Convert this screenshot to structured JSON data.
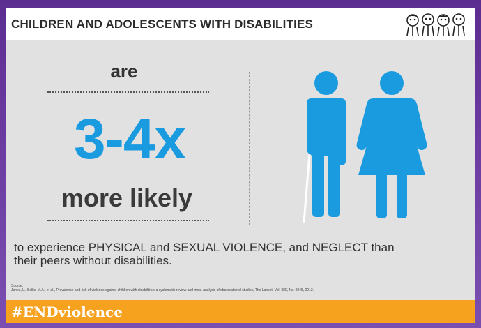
{
  "header": {
    "title": "CHILDREN AND ADOLESCENTS WITH DISABILITIES",
    "logo_icon": "children-group-logo-icon"
  },
  "stat": {
    "prefix": "are",
    "value": "3-4x",
    "suffix": "more likely"
  },
  "illustration": {
    "icon": "man-with-cane-and-woman-icon",
    "color": "#1a9be0"
  },
  "body_text": {
    "line1": "to experience PHYSICAL and SEXUAL VIOLENCE, and NEGLECT than",
    "line2": "their peers without disabilities."
  },
  "source": {
    "label": "Source:",
    "citation": "Jones, L., Bellis, M.A., et al., Prevalence and risk of violence against children with disabilities: a systematic review and meta-analysis of observational studies, The Lancet, Vol. 380, No. 9845, 2012."
  },
  "footer": {
    "hashtag": "#ENDviolence",
    "color": "#f6a21e"
  },
  "colors": {
    "accent": "#1a9be0",
    "background": "#e1e1e1",
    "frame": "#5c2d91"
  }
}
